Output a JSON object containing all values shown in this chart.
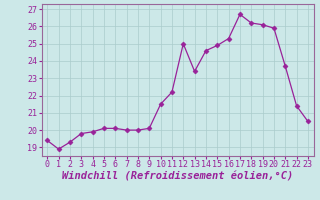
{
  "x": [
    0,
    1,
    2,
    3,
    4,
    5,
    6,
    7,
    8,
    9,
    10,
    11,
    12,
    13,
    14,
    15,
    16,
    17,
    18,
    19,
    20,
    21,
    22,
    23
  ],
  "y": [
    19.4,
    18.9,
    19.3,
    19.8,
    19.9,
    20.1,
    20.1,
    20.0,
    20.0,
    20.1,
    21.5,
    22.2,
    25.0,
    23.4,
    24.6,
    24.9,
    25.3,
    26.7,
    26.2,
    26.1,
    25.9,
    23.7,
    21.4,
    20.5
  ],
  "line_color": "#992299",
  "marker": "D",
  "markersize": 2.5,
  "linewidth": 0.9,
  "xlabel": "Windchill (Refroidissement éolien,°C)",
  "xlabel_fontsize": 7.5,
  "ylim": [
    18.5,
    27.3
  ],
  "xlim": [
    -0.5,
    23.5
  ],
  "yticks": [
    19,
    20,
    21,
    22,
    23,
    24,
    25,
    26,
    27
  ],
  "xticks": [
    0,
    1,
    2,
    3,
    4,
    5,
    6,
    7,
    8,
    9,
    10,
    11,
    12,
    13,
    14,
    15,
    16,
    17,
    18,
    19,
    20,
    21,
    22,
    23
  ],
  "tick_fontsize": 6,
  "background_color": "#cce8e8",
  "grid_color": "#aacccc",
  "spine_color": "#996699",
  "axis_bg": "#cce8e8"
}
